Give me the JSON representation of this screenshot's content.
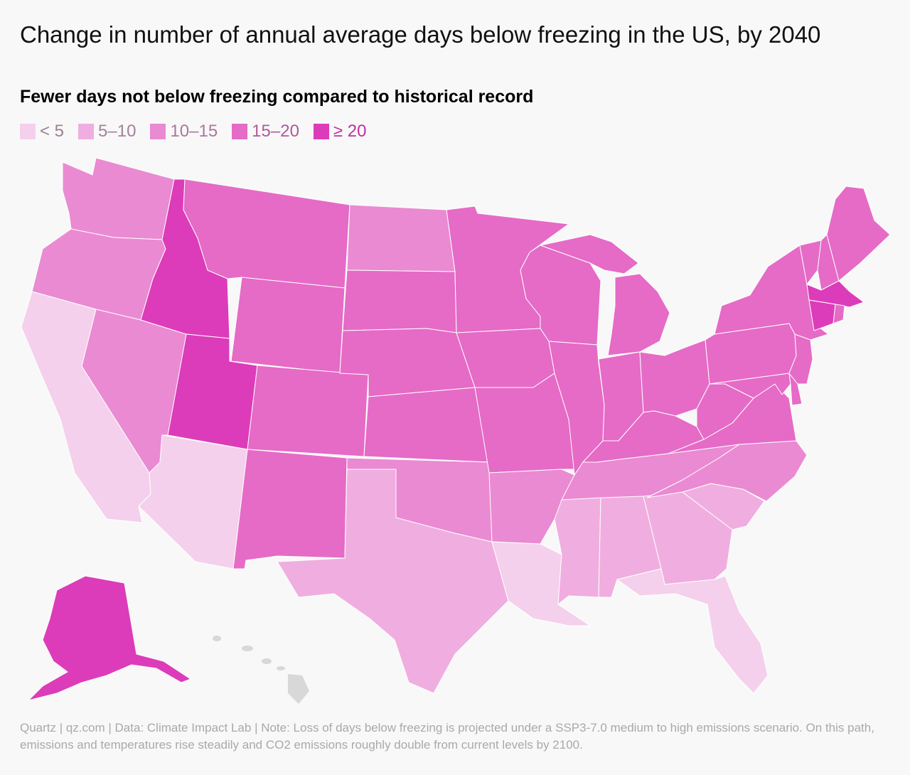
{
  "title": "Change in number of annual average days below freezing in the US, by 2040",
  "subtitle": "Fewer days not below freezing compared to historical record",
  "legend": [
    {
      "label": "< 5",
      "color": "#f4d0ec",
      "text_color": "#9b7f93"
    },
    {
      "label": "5–10",
      "color": "#f0aee0",
      "text_color": "#a3819a"
    },
    {
      "label": "10–15",
      "color": "#ea8ad2",
      "text_color": "#a9789e"
    },
    {
      "label": "15–20",
      "color": "#e56bc6",
      "text_color": "#b05a9c"
    },
    {
      "label": "≥ 20",
      "color": "#dc3cb9",
      "text_color": "#c22f9f"
    }
  ],
  "no_data_color": "#d8d8d8",
  "states": {
    "WA": 2,
    "OR": 2,
    "CA": 0,
    "NV": 2,
    "ID": 4,
    "MT": 3,
    "WY": 3,
    "UT": 4,
    "AZ": 0,
    "CO": 3,
    "NM": 3,
    "ND": 2,
    "SD": 3,
    "NE": 3,
    "KS": 3,
    "OK": 2,
    "TX": 1,
    "MN": 3,
    "IA": 3,
    "MO": 3,
    "AR": 2,
    "LA": 0,
    "WI": 3,
    "IL": 3,
    "MI": 3,
    "IN": 3,
    "OH": 3,
    "KY": 3,
    "TN": 2,
    "MS": 1,
    "AL": 1,
    "GA": 1,
    "FL": 0,
    "SC": 1,
    "NC": 2,
    "VA": 3,
    "WV": 3,
    "PA": 3,
    "NY": 3,
    "NJ": 3,
    "DE": 3,
    "MD": 3,
    "VT": 3,
    "NH": 3,
    "ME": 3,
    "MA": 4,
    "CT": 4,
    "RI": 3,
    "AK": 4
  },
  "note": "Quartz | qz.com | Data: Climate Impact Lab | Note: Loss of days below freezing is projected under a SSP3-7.0 medium to high emissions scenario. On this path, emissions and temperatures rise steadily and CO2 emissions roughly double from current levels by 2100."
}
